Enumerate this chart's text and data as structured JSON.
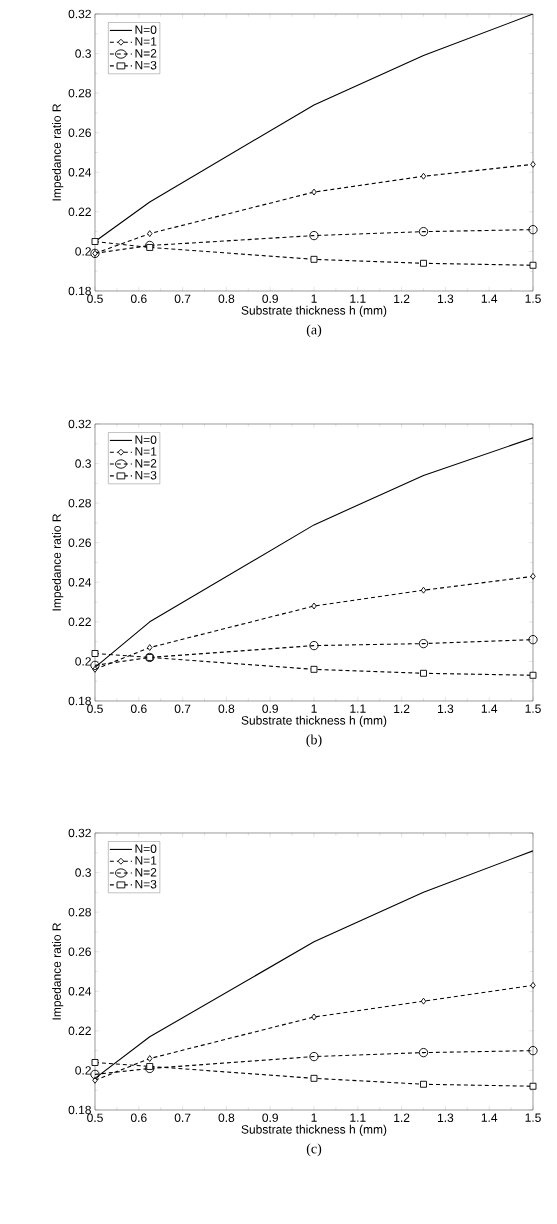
{
  "chart_data": [
    {
      "type": "line",
      "title": "(a)",
      "xlabel": "Substrate thickness h (mm)",
      "ylabel": "Impedance ratio R",
      "x": [
        0.5,
        0.625,
        1,
        1.25,
        1.5
      ],
      "xlim": [
        0.5,
        1.5
      ],
      "ylim": [
        0.18,
        0.32
      ],
      "xticks": [
        0.5,
        0.6,
        0.7,
        0.8,
        0.9,
        1,
        1.1,
        1.2,
        1.3,
        1.4,
        1.5
      ],
      "yticks": [
        0.18,
        0.2,
        0.22,
        0.24,
        0.26,
        0.28,
        0.3,
        0.32
      ],
      "legend": "top left",
      "grid": false,
      "series": [
        {
          "name": "N=0",
          "color": "#000000",
          "marker": "none",
          "line_style": "solid",
          "values": [
            0.205,
            0.225,
            0.274,
            0.299,
            0.32
          ]
        },
        {
          "name": "N=1",
          "color": "#000000",
          "marker": "diamond",
          "line_style": "dashed",
          "values": [
            0.199,
            0.209,
            0.23,
            0.238,
            0.244
          ]
        },
        {
          "name": "N=2",
          "color": "#000000",
          "marker": "circle",
          "line_style": "dashed",
          "values": [
            0.199,
            0.203,
            0.208,
            0.21,
            0.211
          ]
        },
        {
          "name": "N=3",
          "color": "#000000",
          "marker": "square",
          "line_style": "dashed",
          "values": [
            0.205,
            0.202,
            0.196,
            0.194,
            0.193
          ]
        }
      ]
    },
    {
      "type": "line",
      "title": "(b)",
      "xlabel": "Substrate thickness h (mm)",
      "ylabel": "Impedance ratio R",
      "x": [
        0.5,
        0.625,
        1,
        1.25,
        1.5
      ],
      "xlim": [
        0.5,
        1.5
      ],
      "ylim": [
        0.18,
        0.32
      ],
      "xticks": [
        0.5,
        0.6,
        0.7,
        0.8,
        0.9,
        1,
        1.1,
        1.2,
        1.3,
        1.4,
        1.5
      ],
      "yticks": [
        0.18,
        0.2,
        0.22,
        0.24,
        0.26,
        0.28,
        0.3,
        0.32
      ],
      "legend": "top left",
      "grid": false,
      "series": [
        {
          "name": "N=0",
          "color": "#000000",
          "marker": "none",
          "line_style": "solid",
          "values": [
            0.197,
            0.22,
            0.269,
            0.294,
            0.313
          ]
        },
        {
          "name": "N=1",
          "color": "#000000",
          "marker": "diamond",
          "line_style": "dashed",
          "values": [
            0.196,
            0.207,
            0.228,
            0.236,
            0.243
          ]
        },
        {
          "name": "N=2",
          "color": "#000000",
          "marker": "circle",
          "line_style": "dashed",
          "values": [
            0.198,
            0.202,
            0.208,
            0.209,
            0.211
          ]
        },
        {
          "name": "N=3",
          "color": "#000000",
          "marker": "square",
          "line_style": "dashed",
          "values": [
            0.204,
            0.202,
            0.196,
            0.194,
            0.193
          ]
        }
      ]
    },
    {
      "type": "line",
      "title": "(c)",
      "xlabel": "Substrate thickness h (mm)",
      "ylabel": "Impedance ratio R",
      "x": [
        0.5,
        0.625,
        1,
        1.25,
        1.5
      ],
      "xlim": [
        0.5,
        1.5
      ],
      "ylim": [
        0.18,
        0.32
      ],
      "xticks": [
        0.5,
        0.6,
        0.7,
        0.8,
        0.9,
        1,
        1.1,
        1.2,
        1.3,
        1.4,
        1.5
      ],
      "yticks": [
        0.18,
        0.2,
        0.22,
        0.24,
        0.26,
        0.28,
        0.3,
        0.32
      ],
      "legend": "top left",
      "grid": false,
      "series": [
        {
          "name": "N=0",
          "color": "#000000",
          "marker": "none",
          "line_style": "solid",
          "values": [
            0.196,
            0.217,
            0.265,
            0.29,
            0.311
          ]
        },
        {
          "name": "N=1",
          "color": "#000000",
          "marker": "diamond",
          "line_style": "dashed",
          "values": [
            0.195,
            0.206,
            0.227,
            0.235,
            0.243
          ]
        },
        {
          "name": "N=2",
          "color": "#000000",
          "marker": "circle",
          "line_style": "dashed",
          "values": [
            0.198,
            0.201,
            0.207,
            0.209,
            0.21
          ]
        },
        {
          "name": "N=3",
          "color": "#000000",
          "marker": "square",
          "line_style": "dashed",
          "values": [
            0.204,
            0.202,
            0.196,
            0.193,
            0.192
          ]
        }
      ]
    }
  ]
}
